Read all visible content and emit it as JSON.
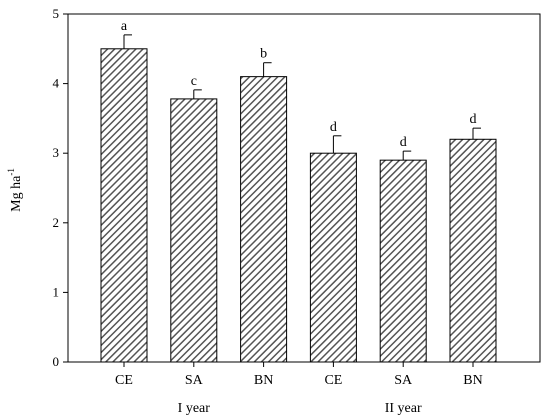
{
  "chart_data": {
    "type": "bar",
    "ylabel": "Mg ha",
    "ylabel_superscript": "-1",
    "ylim": [
      0,
      5
    ],
    "yticks": [
      "0",
      "1",
      "2",
      "3",
      "4",
      "5"
    ],
    "categories": [
      "CE",
      "SA",
      "BN",
      "CE",
      "SA",
      "BN"
    ],
    "values": [
      4.5,
      3.78,
      4.1,
      3.0,
      2.9,
      3.2
    ],
    "errors": [
      0.2,
      0.13,
      0.2,
      0.25,
      0.13,
      0.16
    ],
    "significance": [
      "a",
      "c",
      "b",
      "d",
      "d",
      "d"
    ],
    "groups": [
      {
        "label": "I year",
        "categories": [
          0,
          1,
          2
        ]
      },
      {
        "label": "II year",
        "categories": [
          3,
          4,
          5
        ]
      }
    ],
    "bar_fill": "diagonal-hatch",
    "bar_color": "#555555"
  }
}
